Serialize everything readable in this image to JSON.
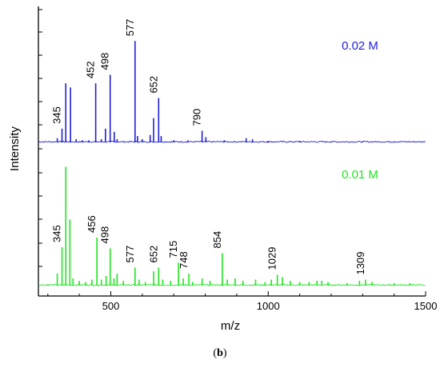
{
  "chart_data": {
    "type": "line",
    "xlabel": "m/z",
    "ylabel": "Intensity",
    "xlim": [
      270,
      1500
    ],
    "xticks": [
      "500",
      "1000",
      "1500"
    ],
    "xtick_values": [
      500,
      1000,
      1500
    ],
    "panels": [
      {
        "name": "0.02 M",
        "color": "#1f1fd6",
        "ylim": [
          0,
          1
        ],
        "peaks": [
          {
            "x": 330,
            "y": 0.04
          },
          {
            "x": 345,
            "y": 0.13
          },
          {
            "x": 357,
            "y": 0.56
          },
          {
            "x": 372,
            "y": 0.52
          },
          {
            "x": 390,
            "y": 0.03
          },
          {
            "x": 410,
            "y": 0.02
          },
          {
            "x": 430,
            "y": 0.02
          },
          {
            "x": 452,
            "y": 0.56
          },
          {
            "x": 470,
            "y": 0.03
          },
          {
            "x": 483,
            "y": 0.13
          },
          {
            "x": 498,
            "y": 0.64
          },
          {
            "x": 511,
            "y": 0.1
          },
          {
            "x": 520,
            "y": 0.03
          },
          {
            "x": 577,
            "y": 0.96
          },
          {
            "x": 585,
            "y": 0.06
          },
          {
            "x": 600,
            "y": 0.03
          },
          {
            "x": 625,
            "y": 0.07
          },
          {
            "x": 636,
            "y": 0.23
          },
          {
            "x": 652,
            "y": 0.42
          },
          {
            "x": 660,
            "y": 0.06
          },
          {
            "x": 700,
            "y": 0.02
          },
          {
            "x": 745,
            "y": 0.02
          },
          {
            "x": 790,
            "y": 0.11
          },
          {
            "x": 802,
            "y": 0.05
          },
          {
            "x": 860,
            "y": 0.02
          },
          {
            "x": 930,
            "y": 0.04
          },
          {
            "x": 950,
            "y": 0.03
          },
          {
            "x": 1000,
            "y": 0.015
          },
          {
            "x": 1100,
            "y": 0.015
          },
          {
            "x": 1200,
            "y": 0.01
          },
          {
            "x": 1300,
            "y": 0.01
          },
          {
            "x": 1400,
            "y": 0.01
          }
        ],
        "annotations": [
          {
            "label": "345",
            "x": 345
          },
          {
            "label": "452",
            "x": 452
          },
          {
            "label": "498",
            "x": 498
          },
          {
            "label": "577",
            "x": 577
          },
          {
            "label": "652",
            "x": 652
          },
          {
            "label": "790",
            "x": 790
          }
        ]
      },
      {
        "name": "0.01 M",
        "color": "#1fe61f",
        "ylim": [
          0,
          1
        ],
        "peaks": [
          {
            "x": 300,
            "y": 0.01
          },
          {
            "x": 330,
            "y": 0.1
          },
          {
            "x": 345,
            "y": 0.32
          },
          {
            "x": 357,
            "y": 0.99
          },
          {
            "x": 370,
            "y": 0.55
          },
          {
            "x": 380,
            "y": 0.06
          },
          {
            "x": 400,
            "y": 0.04
          },
          {
            "x": 420,
            "y": 0.03
          },
          {
            "x": 440,
            "y": 0.05
          },
          {
            "x": 456,
            "y": 0.4
          },
          {
            "x": 470,
            "y": 0.05
          },
          {
            "x": 485,
            "y": 0.08
          },
          {
            "x": 498,
            "y": 0.31
          },
          {
            "x": 510,
            "y": 0.06
          },
          {
            "x": 520,
            "y": 0.1
          },
          {
            "x": 540,
            "y": 0.04
          },
          {
            "x": 577,
            "y": 0.15
          },
          {
            "x": 590,
            "y": 0.05
          },
          {
            "x": 610,
            "y": 0.03
          },
          {
            "x": 636,
            "y": 0.12
          },
          {
            "x": 652,
            "y": 0.15
          },
          {
            "x": 665,
            "y": 0.05
          },
          {
            "x": 690,
            "y": 0.04
          },
          {
            "x": 715,
            "y": 0.19
          },
          {
            "x": 730,
            "y": 0.06
          },
          {
            "x": 748,
            "y": 0.1
          },
          {
            "x": 760,
            "y": 0.03
          },
          {
            "x": 790,
            "y": 0.06
          },
          {
            "x": 815,
            "y": 0.04
          },
          {
            "x": 854,
            "y": 0.27
          },
          {
            "x": 870,
            "y": 0.05
          },
          {
            "x": 895,
            "y": 0.06
          },
          {
            "x": 920,
            "y": 0.04
          },
          {
            "x": 960,
            "y": 0.05
          },
          {
            "x": 990,
            "y": 0.03
          },
          {
            "x": 1010,
            "y": 0.05
          },
          {
            "x": 1029,
            "y": 0.09
          },
          {
            "x": 1045,
            "y": 0.07
          },
          {
            "x": 1070,
            "y": 0.04
          },
          {
            "x": 1100,
            "y": 0.03
          },
          {
            "x": 1130,
            "y": 0.03
          },
          {
            "x": 1155,
            "y": 0.04
          },
          {
            "x": 1170,
            "y": 0.04
          },
          {
            "x": 1190,
            "y": 0.03
          },
          {
            "x": 1250,
            "y": 0.02
          },
          {
            "x": 1290,
            "y": 0.04
          },
          {
            "x": 1309,
            "y": 0.05
          },
          {
            "x": 1330,
            "y": 0.03
          },
          {
            "x": 1400,
            "y": 0.02
          },
          {
            "x": 1450,
            "y": 0.02
          }
        ],
        "annotations": [
          {
            "label": "345",
            "x": 345
          },
          {
            "label": "456",
            "x": 456
          },
          {
            "label": "498",
            "x": 498
          },
          {
            "label": "577",
            "x": 577
          },
          {
            "label": "652",
            "x": 652
          },
          {
            "label": "715",
            "x": 715
          },
          {
            "label": "748",
            "x": 748
          },
          {
            "label": "854",
            "x": 854
          },
          {
            "label": "1029",
            "x": 1029
          },
          {
            "label": "1309",
            "x": 1309
          }
        ]
      }
    ],
    "grid": false,
    "legend": "none"
  },
  "caption": {
    "open": "(",
    "letter": "b",
    "close": ")"
  }
}
